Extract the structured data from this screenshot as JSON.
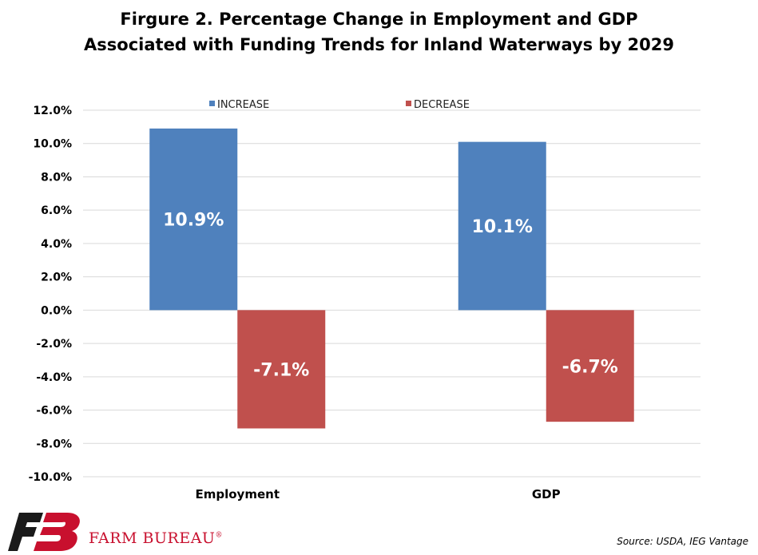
{
  "chart_data": {
    "type": "bar",
    "title_lines": [
      "Firgure 2. Percentage Change in Employment and GDP",
      "Associated with Funding Trends for Inland Waterways by 2029"
    ],
    "categories": [
      "Employment",
      "GDP"
    ],
    "series": [
      {
        "name": "INCREASE",
        "values": [
          10.9,
          10.1
        ],
        "labels": [
          "10.9%",
          "10.1%"
        ],
        "color": "#4f81bd"
      },
      {
        "name": "DECREASE",
        "values": [
          -7.1,
          -6.7
        ],
        "labels": [
          "-7.1%",
          "-6.7%"
        ],
        "color": "#c0504d"
      }
    ],
    "ylim": [
      -10,
      12
    ],
    "yticks": [
      12,
      10,
      8,
      6,
      4,
      2,
      0,
      -2,
      -4,
      -6,
      -8,
      -10
    ],
    "ytick_labels": [
      "12.0%",
      "10.0%",
      "8.0%",
      "6.0%",
      "4.0%",
      "2.0%",
      "0.0%",
      "-2.0%",
      "-4.0%",
      "-6.0%",
      "-8.0%",
      "-10.0%"
    ],
    "grid": true,
    "legend_position": "top"
  },
  "footer": {
    "brand": "FARM BUREAU",
    "brand_mark": "®",
    "source": "Source: USDA, IEG Vantage",
    "logo_color": "#c8102e"
  }
}
